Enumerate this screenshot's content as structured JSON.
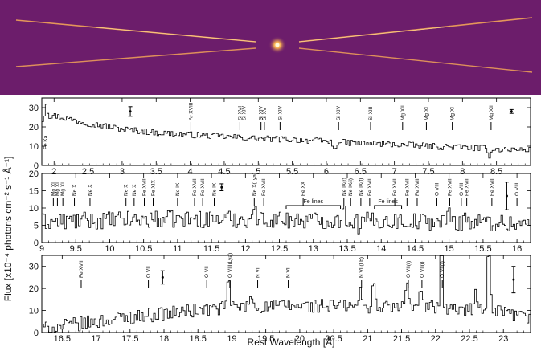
{
  "image": {
    "description_colors": {
      "background": "#6e1f6c",
      "streak": "#f5b060",
      "streak_dim": "#c06060",
      "core": "#ffe8a0"
    }
  },
  "chart_data": [
    {
      "type": "line",
      "title": "",
      "xlim": [
        1.82,
        9.0
      ],
      "ylim": [
        0,
        35
      ],
      "x_ticks": [
        "2",
        "2.5",
        "3",
        "3.5",
        "4",
        "4.5",
        "5",
        "5.5",
        "6",
        "6.5",
        "7",
        "7.5",
        "8",
        "8.5"
      ],
      "x_tick_values": [
        2,
        2.5,
        3,
        3.5,
        4,
        4.5,
        5,
        5.5,
        6,
        6.5,
        7,
        7.5,
        8,
        8.5
      ],
      "y_ticks": [
        "0",
        "10",
        "20",
        "30"
      ],
      "y_tick_values": [
        0,
        10,
        20,
        30
      ],
      "continuum": [
        [
          1.85,
          24
        ],
        [
          2.0,
          26
        ],
        [
          2.5,
          22
        ],
        [
          3.0,
          19
        ],
        [
          3.5,
          17
        ],
        [
          4.0,
          16
        ],
        [
          4.5,
          15
        ],
        [
          5.0,
          14
        ],
        [
          5.5,
          13.5
        ],
        [
          6.0,
          12.5
        ],
        [
          6.5,
          11.5
        ],
        [
          7.0,
          11
        ],
        [
          7.5,
          10
        ],
        [
          8.0,
          9.5
        ],
        [
          8.5,
          8.5
        ],
        [
          9.0,
          8
        ]
      ],
      "noise": 1.6,
      "features": [
        [
          6.13,
          -5
        ],
        [
          8.4,
          -4
        ],
        [
          1.9,
          8
        ]
      ],
      "error_bars": [
        {
          "x": 3.12,
          "y": 28,
          "err": 2.5
        },
        {
          "x": 8.72,
          "y": 28,
          "err": 1
        }
      ],
      "lines": [
        {
          "x": 4.01,
          "label": "Ar XVIII"
        },
        {
          "x": 4.73,
          "label": "Si XVI"
        },
        {
          "x": 4.79,
          "label": "Si XIV"
        },
        {
          "x": 5.04,
          "label": "Si XIV"
        },
        {
          "x": 5.09,
          "label": "Si XV"
        },
        {
          "x": 5.32,
          "label": "Si XIV"
        },
        {
          "x": 6.18,
          "label": "Si XIV"
        },
        {
          "x": 6.65,
          "label": "Si XIII"
        },
        {
          "x": 7.12,
          "label": "Mg XII"
        },
        {
          "x": 7.47,
          "label": "Mg XI"
        },
        {
          "x": 7.85,
          "label": "Mg XI"
        },
        {
          "x": 8.42,
          "label": "Mg XII"
        }
      ],
      "left_label": {
        "x": 1.86,
        "label": "Fe Ka"
      }
    },
    {
      "type": "line",
      "title": "",
      "xlim": [
        9.0,
        16.2
      ],
      "ylim": [
        0,
        20
      ],
      "x_ticks": [
        "9",
        "9.5",
        "10",
        "10.5",
        "11",
        "11.5",
        "12",
        "12.5",
        "13",
        "13.5",
        "14",
        "14.5",
        "15",
        "15.5",
        "16"
      ],
      "x_tick_values": [
        9,
        9.5,
        10,
        10.5,
        11,
        11.5,
        12,
        12.5,
        13,
        13.5,
        14,
        14.5,
        15,
        15.5,
        16
      ],
      "y_ticks": [
        "0",
        "5",
        "10",
        "15",
        "20"
      ],
      "y_tick_values": [
        0,
        5,
        10,
        15,
        20
      ],
      "continuum": [
        [
          9.0,
          6
        ],
        [
          10.0,
          6.5
        ],
        [
          11.0,
          6.8
        ],
        [
          12.0,
          6.8
        ],
        [
          13.0,
          6.5
        ],
        [
          14.0,
          6.3
        ],
        [
          15.0,
          6
        ],
        [
          16.2,
          5.5
        ]
      ],
      "noise": 2.5,
      "features": [
        [
          13.45,
          5
        ],
        [
          15.02,
          4
        ],
        [
          12.14,
          4
        ],
        [
          15.25,
          3
        ],
        [
          13.7,
          -3
        ]
      ],
      "error_bars": [
        {
          "x": 11.65,
          "y": 16,
          "err": 1
        },
        {
          "x": 15.85,
          "y": 13.5,
          "err": 4
        }
      ],
      "lines": [
        {
          "x": 9.17,
          "label": "Mg XI"
        },
        {
          "x": 9.23,
          "label": "Mg XI"
        },
        {
          "x": 9.31,
          "label": "Mg XI"
        },
        {
          "x": 9.48,
          "label": "Ne X"
        },
        {
          "x": 9.71,
          "label": "Ne X"
        },
        {
          "x": 10.24,
          "label": "Ne X"
        },
        {
          "x": 10.36,
          "label": "Ne X"
        },
        {
          "x": 10.51,
          "label": "Fe XVII"
        },
        {
          "x": 10.64,
          "label": "Fe XIX"
        },
        {
          "x": 11.0,
          "label": "Ne IX"
        },
        {
          "x": 11.25,
          "label": "Fe XVII"
        },
        {
          "x": 11.37,
          "label": "Fe XVIII"
        },
        {
          "x": 11.54,
          "label": "Ne IX"
        },
        {
          "x": 12.13,
          "label": "Ne X(Lya)"
        },
        {
          "x": 12.27,
          "label": "Fe XVII"
        },
        {
          "x": 12.85,
          "label": "Fe XX"
        },
        {
          "x": 13.45,
          "label": "Ne IX(r)"
        },
        {
          "x": 13.55,
          "label": "Ne IX(i)"
        },
        {
          "x": 13.7,
          "label": "Ne IX(f)"
        },
        {
          "x": 13.83,
          "label": "Fe XVII"
        },
        {
          "x": 14.2,
          "label": "Fe XVIII"
        },
        {
          "x": 14.38,
          "label": "Fe XVIII"
        },
        {
          "x": 14.53,
          "label": "Fe XVIII"
        },
        {
          "x": 14.82,
          "label": "O VIII"
        },
        {
          "x": 15.01,
          "label": "Fe XVII"
        },
        {
          "x": 15.18,
          "label": "O VIII"
        },
        {
          "x": 15.26,
          "label": "Fe XVII"
        },
        {
          "x": 15.63,
          "label": "Fe XVIII"
        },
        {
          "x": 16.0,
          "label": "O VIII"
        }
      ],
      "brackets": [
        {
          "x1": 12.6,
          "x2": 13.4,
          "label": "Fe lines"
        },
        {
          "x1": 13.9,
          "x2": 14.3,
          "label": "Fe lines"
        }
      ]
    },
    {
      "type": "line",
      "title": "",
      "xlim": [
        16.2,
        23.4
      ],
      "ylim": [
        0,
        35
      ],
      "x_ticks": [
        "16.5",
        "17",
        "17.5",
        "18",
        "18.5",
        "19",
        "19.5",
        "20",
        "20.5",
        "21",
        "21.5",
        "22",
        "22.5",
        "23"
      ],
      "x_tick_values": [
        16.5,
        17,
        17.5,
        18,
        18.5,
        19,
        19.5,
        20,
        20.5,
        21,
        21.5,
        22,
        22.5,
        23
      ],
      "y_ticks": [
        "0",
        "10",
        "20",
        "30"
      ],
      "y_tick_values": [
        0,
        10,
        20,
        30
      ],
      "xlabel": "Rest Wavelength [Å]",
      "continuum": [
        [
          16.2,
          1.5
        ],
        [
          16.8,
          4
        ],
        [
          17.5,
          7
        ],
        [
          18.0,
          8.5
        ],
        [
          18.5,
          10
        ],
        [
          19.0,
          11.5
        ],
        [
          20.0,
          12
        ],
        [
          21.0,
          12
        ],
        [
          22.0,
          11
        ],
        [
          23.0,
          9
        ],
        [
          23.4,
          6
        ]
      ],
      "noise": 3.2,
      "features": [
        [
          18.97,
          15
        ],
        [
          21.6,
          14
        ],
        [
          22.1,
          34
        ],
        [
          22.8,
          35
        ],
        [
          21.1,
          12
        ],
        [
          19.3,
          6
        ],
        [
          20.9,
          6
        ],
        [
          21.8,
          9
        ],
        [
          21.95,
          7
        ],
        [
          22.6,
          10
        ]
      ],
      "error_bars": [
        {
          "x": 17.98,
          "y": 25,
          "err": 3
        },
        {
          "x": 23.15,
          "y": 24,
          "err": 6
        }
      ],
      "lines": [
        {
          "x": 16.78,
          "label": "Fe XVII"
        },
        {
          "x": 17.77,
          "label": "O VII"
        },
        {
          "x": 18.63,
          "label": "O VII"
        },
        {
          "x": 18.97,
          "label": "O VIII(Lya)"
        },
        {
          "x": 19.38,
          "label": "N VII"
        },
        {
          "x": 19.83,
          "label": "N VII"
        },
        {
          "x": 20.91,
          "label": "N VII(Lb)"
        },
        {
          "x": 21.6,
          "label": "O VII(r)"
        },
        {
          "x": 21.8,
          "label": "O VII(i)"
        },
        {
          "x": 22.1,
          "label": "O VII(f)"
        }
      ],
      "ylabel": "Flux [x10⁻⁴ photons cm⁻² s⁻¹ Å⁻¹]"
    }
  ]
}
